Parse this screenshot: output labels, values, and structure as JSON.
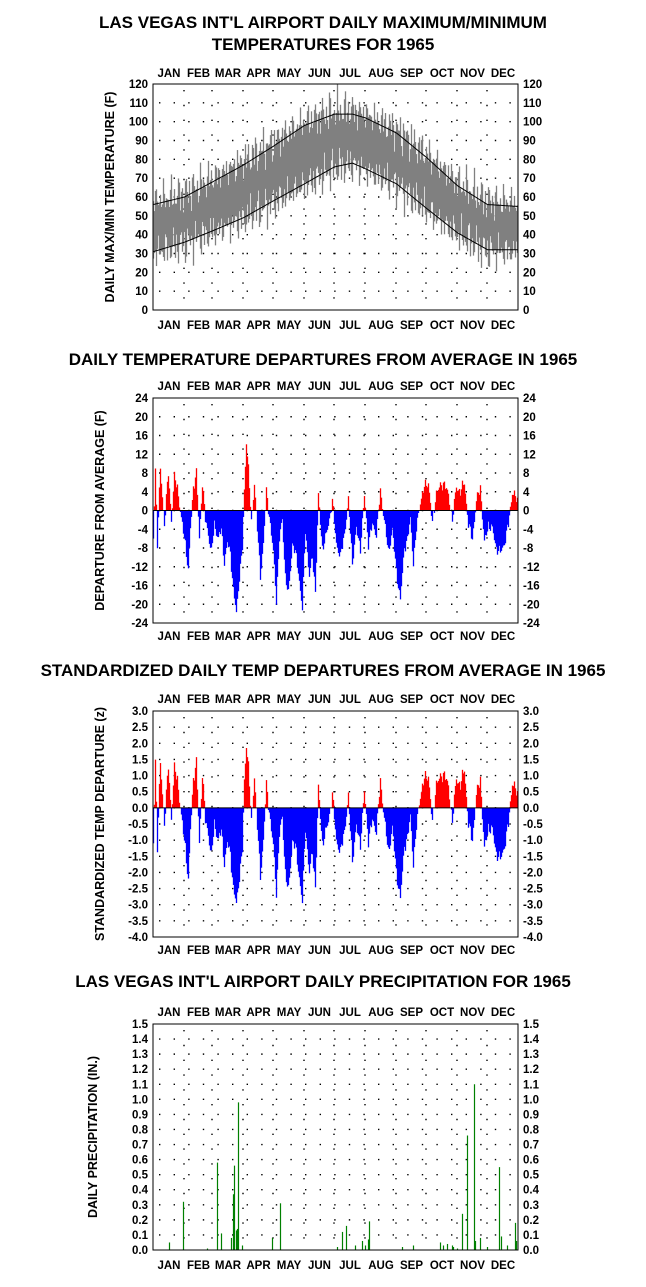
{
  "months": [
    "JAN",
    "FEB",
    "MAR",
    "APR",
    "MAY",
    "JUN",
    "JUL",
    "AUG",
    "SEP",
    "OCT",
    "NOV",
    "DEC"
  ],
  "colors": {
    "max_min_fill": "#808080",
    "warm": "#ff0000",
    "cool": "#0000ff",
    "precip": "#008000",
    "normals": "#000000"
  },
  "chart_data": [
    {
      "id": "temps",
      "type": "area",
      "title_lines": [
        "LAS VEGAS INT'L AIRPORT DAILY MAXIMUM/MINIMUM",
        "TEMPERATURES FOR 1965"
      ],
      "ylabel": "DAILY MAX/MIN TEMPERATURE (F)",
      "ylim": [
        0,
        120
      ],
      "yticks": [
        "0",
        "10",
        "20",
        "30",
        "40",
        "50",
        "60",
        "70",
        "80",
        "90",
        "100",
        "110",
        "120"
      ],
      "grid": "dotted",
      "normal_max_keypoints": {
        "day": [
          1,
          32,
          60,
          91,
          121,
          152,
          182,
          200,
          213,
          244,
          274,
          305,
          335,
          365
        ],
        "value": [
          56,
          60,
          68,
          77,
          87,
          98,
          104,
          104,
          102,
          94,
          81,
          66,
          56,
          55
        ]
      },
      "normal_min_keypoints": {
        "day": [
          1,
          32,
          60,
          91,
          121,
          152,
          182,
          200,
          213,
          244,
          274,
          305,
          335,
          365
        ],
        "value": [
          31,
          36,
          42,
          49,
          58,
          67,
          76,
          78,
          75,
          67,
          54,
          41,
          32,
          32
        ]
      }
    },
    {
      "id": "departures",
      "type": "bar",
      "title_lines": [
        "DAILY TEMPERATURE DEPARTURES FROM AVERAGE IN 1965"
      ],
      "ylabel": "DEPARTURE FROM AVERAGE (F)",
      "ylim": [
        -24,
        24
      ],
      "yticks": [
        "-24",
        "-20",
        "-16",
        "-12",
        "-8",
        "-4",
        "0",
        "4",
        "8",
        "12",
        "16",
        "20",
        "24"
      ],
      "grid": "dotted",
      "keypoints": {
        "day": [
          1,
          3,
          5,
          8,
          12,
          16,
          19,
          22,
          25,
          29,
          33,
          36,
          38,
          41,
          44,
          47,
          50,
          53,
          56,
          59,
          62,
          66,
          69,
          72,
          75,
          78,
          81,
          84,
          87,
          90,
          92,
          94,
          96,
          99,
          102,
          105,
          108,
          111,
          114,
          118,
          121,
          124,
          127,
          130,
          133,
          136,
          140,
          143,
          146,
          150,
          153,
          157,
          160,
          163,
          166,
          170,
          173,
          176,
          180,
          184,
          188,
          192,
          196,
          200,
          204,
          208,
          212,
          216,
          220,
          224,
          228,
          232,
          236,
          240,
          244,
          248,
          252,
          255,
          258,
          261,
          264,
          268,
          272,
          276,
          280,
          284,
          288,
          292,
          296,
          300,
          304,
          308,
          312,
          316,
          320,
          324,
          328,
          332,
          336,
          340,
          344,
          348,
          352,
          356,
          360,
          365
        ],
        "value": [
          -6,
          9,
          -7,
          9,
          -3,
          8,
          -2,
          7,
          5,
          -2,
          -7,
          -13,
          -4,
          5,
          8,
          -6,
          6,
          -2,
          -5,
          -9,
          -3,
          -6,
          -4,
          -11,
          -7,
          -9,
          -17,
          -22,
          -14,
          -8,
          4,
          15,
          9,
          -3,
          6,
          -4,
          -14,
          -7,
          4,
          -3,
          -9,
          -19,
          -6,
          -2,
          -14,
          -18,
          -7,
          -9,
          -13,
          -21,
          -4,
          -14,
          -10,
          -17,
          3,
          -8,
          -6,
          -3,
          2,
          -7,
          -10,
          -5,
          2,
          -11,
          -4,
          -8,
          3,
          -7,
          -3,
          -5,
          4,
          -2,
          -9,
          -4,
          -13,
          -19,
          -8,
          -6,
          -2,
          -11,
          -4,
          2,
          5,
          6,
          -3,
          4,
          5,
          6,
          3,
          -2,
          5,
          4,
          6,
          -3,
          -6,
          2,
          5,
          -7,
          -3,
          -4,
          -8,
          -9,
          -7,
          -3,
          4,
          2
        ]
      }
    },
    {
      "id": "std_departures",
      "type": "bar",
      "title_lines": [
        "STANDARDIZED DAILY TEMP DEPARTURES FROM AVERAGE IN 1965"
      ],
      "ylabel": "STANDARDIZED TEMP DEPARTURE (z)",
      "ylim": [
        -4,
        3
      ],
      "yticks": [
        "-4.0",
        "-3.5",
        "-3.0",
        "-2.5",
        "-2.0",
        "-1.5",
        "-1.0",
        "-0.5",
        "0.0",
        "0.5",
        "1.0",
        "1.5",
        "2.0",
        "2.5",
        "3.0"
      ],
      "grid": "dotted",
      "keypoints": {
        "day": [
          1,
          3,
          5,
          8,
          12,
          16,
          19,
          22,
          25,
          29,
          33,
          36,
          38,
          41,
          44,
          47,
          50,
          53,
          56,
          59,
          62,
          66,
          69,
          72,
          75,
          78,
          81,
          84,
          87,
          90,
          92,
          94,
          96,
          99,
          102,
          105,
          108,
          111,
          114,
          118,
          121,
          124,
          127,
          130,
          133,
          136,
          140,
          143,
          146,
          150,
          153,
          157,
          160,
          163,
          166,
          170,
          173,
          176,
          180,
          184,
          188,
          192,
          196,
          200,
          204,
          208,
          212,
          216,
          220,
          224,
          228,
          232,
          236,
          240,
          244,
          248,
          252,
          255,
          258,
          261,
          264,
          268,
          272,
          276,
          280,
          284,
          288,
          292,
          296,
          300,
          304,
          308,
          312,
          316,
          320,
          324,
          328,
          332,
          336,
          340,
          344,
          348,
          352,
          356,
          360,
          365
        ],
        "value": [
          -1.1,
          1.5,
          -1.2,
          1.4,
          -0.5,
          1.3,
          -0.3,
          1.2,
          0.9,
          -0.3,
          -1.2,
          -2.3,
          -0.7,
          0.9,
          1.4,
          -1.1,
          1.1,
          -0.4,
          -0.8,
          -1.5,
          -0.5,
          -1.0,
          -0.7,
          -1.7,
          -1.1,
          -1.4,
          -2.5,
          -3.0,
          -2.1,
          -1.3,
          0.8,
          2.0,
          1.3,
          -0.5,
          1.0,
          -0.6,
          -2.1,
          -1.0,
          0.7,
          -0.4,
          -1.2,
          -2.6,
          -0.8,
          -0.3,
          -2.0,
          -2.6,
          -1.0,
          -1.2,
          -1.9,
          -2.9,
          -0.6,
          -2.0,
          -1.4,
          -2.4,
          0.6,
          -1.1,
          -0.8,
          -0.4,
          0.4,
          -1.0,
          -1.4,
          -0.7,
          0.3,
          -1.6,
          -0.6,
          -1.1,
          0.5,
          -1.0,
          -0.4,
          -0.7,
          0.8,
          -0.3,
          -1.4,
          -0.6,
          -2.0,
          -2.8,
          -1.2,
          -0.9,
          -0.3,
          -1.7,
          -0.6,
          0.4,
          0.9,
          1.0,
          -0.5,
          0.8,
          0.9,
          1.1,
          0.6,
          -0.4,
          0.9,
          0.7,
          1.2,
          -0.5,
          -1.0,
          0.4,
          0.9,
          -1.3,
          -0.6,
          -0.7,
          -1.4,
          -1.6,
          -1.2,
          -0.5,
          0.8,
          0.4
        ]
      }
    },
    {
      "id": "precip",
      "type": "bar",
      "title_lines": [
        "LAS VEGAS INT'L AIRPORT DAILY PRECIPITATION FOR 1965"
      ],
      "ylabel": "DAILY PRECIPITATION (IN.)",
      "ylim": [
        0,
        1.5
      ],
      "yticks": [
        "0.0",
        "0.1",
        "0.2",
        "0.3",
        "0.4",
        "0.5",
        "0.6",
        "0.7",
        "0.8",
        "0.9",
        "1.0",
        "1.1",
        "1.2",
        "1.3",
        "1.4",
        "1.5"
      ],
      "grid": "dotted",
      "events": {
        "day": [
          17,
          31,
          55,
          65,
          69,
          79,
          81,
          82,
          84,
          85,
          86,
          90,
          120,
          128,
          185,
          190,
          194,
          203,
          210,
          213,
          216,
          217,
          250,
          261,
          288,
          291,
          295,
          300,
          301,
          305,
          310,
          315,
          322,
          323,
          328,
          335,
          347,
          349,
          355,
          363,
          364
        ],
        "value": [
          0.05,
          0.32,
          0.01,
          0.58,
          0.11,
          0.08,
          0.37,
          0.56,
          0.13,
          0.14,
          0.98,
          0.03,
          0.08,
          0.31,
          0.02,
          0.12,
          0.16,
          0.03,
          0.06,
          0.03,
          0.07,
          0.19,
          0.02,
          0.03,
          0.05,
          0.03,
          0.04,
          0.03,
          0.02,
          0.01,
          0.24,
          0.76,
          1.1,
          0.06,
          0.08,
          0.02,
          0.55,
          0.09,
          0.03,
          0.18,
          0.06
        ]
      }
    }
  ]
}
